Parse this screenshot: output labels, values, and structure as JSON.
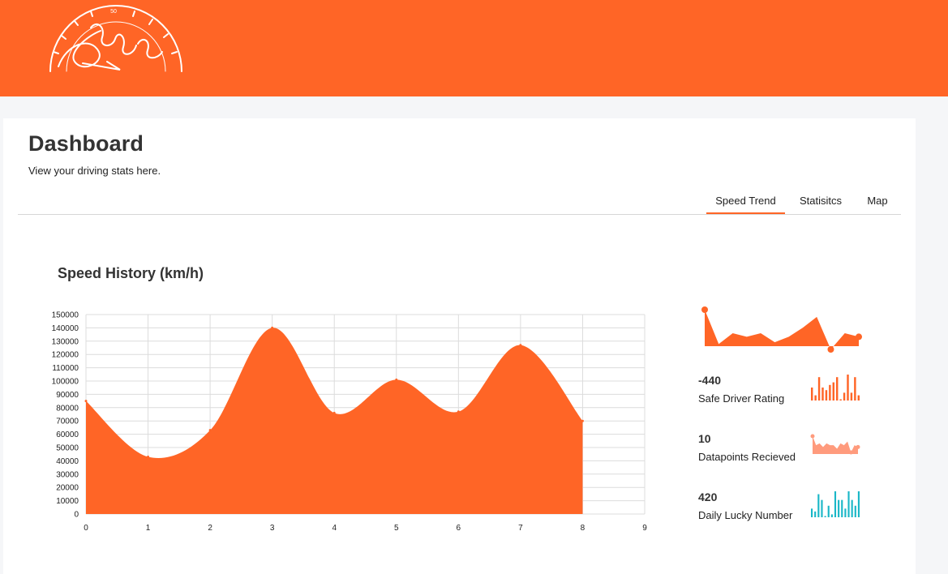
{
  "header": {
    "brand_color": "#ff6526",
    "logo_icon": "speedometer-logo-icon",
    "logo_dial_label": "50"
  },
  "page": {
    "title": "Dashboard",
    "subtitle": "View your driving stats here."
  },
  "tabs": [
    {
      "label": "Speed Trend",
      "active": true
    },
    {
      "label": "Statisitcs",
      "active": false
    },
    {
      "label": "Map",
      "active": false
    }
  ],
  "speed_chart_title": "Speed History (km/h)",
  "chart_data": {
    "type": "area",
    "title": "Speed History (km/h)",
    "xlabel": "",
    "ylabel": "",
    "x": [
      0,
      1,
      2,
      3,
      4,
      5,
      6,
      7,
      8
    ],
    "values": [
      85000,
      43000,
      63000,
      140000,
      76000,
      101000,
      77000,
      127000,
      70000
    ],
    "xlim": [
      0,
      9
    ],
    "ylim": [
      0,
      150000
    ],
    "x_ticks": [
      0,
      1,
      2,
      3,
      4,
      5,
      6,
      7,
      8,
      9
    ],
    "y_ticks": [
      0,
      10000,
      20000,
      30000,
      40000,
      50000,
      60000,
      70000,
      80000,
      90000,
      100000,
      110000,
      120000,
      130000,
      140000,
      150000
    ],
    "color": "#ff6526",
    "grid": true
  },
  "sparkline_top": {
    "values": [
      22,
      3,
      9,
      7,
      9,
      4,
      7,
      12,
      18,
      0,
      9,
      7
    ],
    "color": "#ff6526"
  },
  "stats": [
    {
      "value": "-440",
      "label": "Safe Driver Rating",
      "spark_type": "bar",
      "color": "#ff6526",
      "spark_values": [
        5,
        2,
        9,
        5,
        4,
        6,
        7,
        9,
        0,
        3,
        10,
        3,
        9,
        2
      ]
    },
    {
      "value": "10",
      "label": "Datapoints Recieved",
      "spark_type": "area",
      "color": "#ff9b7d",
      "spark_values": [
        9,
        4,
        5,
        3,
        5,
        4,
        4,
        2,
        5,
        4,
        6,
        0,
        4,
        3
      ]
    },
    {
      "value": "420",
      "label": "Daily Lucky Number",
      "spark_type": "bar",
      "color": "#1ab7c7",
      "spark_values": [
        3,
        2,
        8,
        6,
        0,
        4,
        1,
        9,
        6,
        6,
        3,
        9,
        6,
        4,
        9
      ]
    }
  ]
}
